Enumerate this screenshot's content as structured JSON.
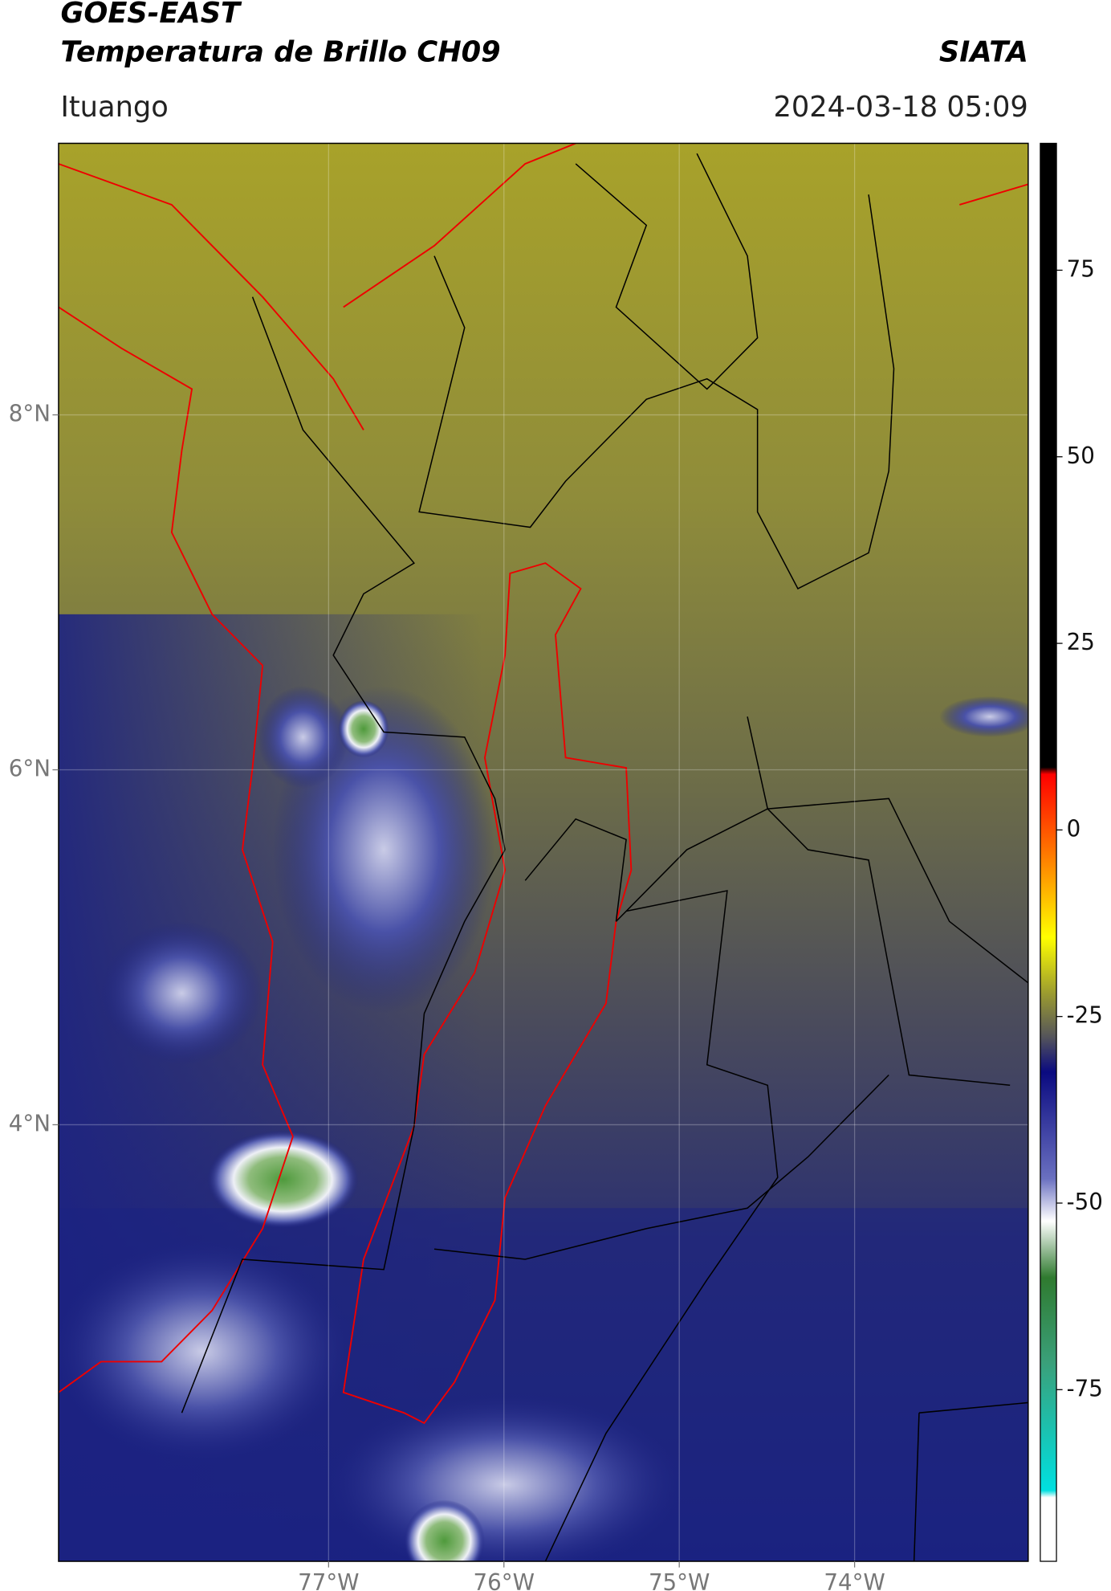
{
  "header": {
    "title_line1": "GOES-EAST",
    "title_line2": "Temperatura de Brillo CH09",
    "brand": "SIATA",
    "location": "Ituango",
    "datetime": "2024-03-18 05:09"
  },
  "map": {
    "xlim": [
      -78.54,
      -73.01
    ],
    "ylim": [
      1.54,
      9.53
    ],
    "xticks": [
      {
        "value": -77,
        "label": "77°W"
      },
      {
        "value": -76,
        "label": "76°W"
      },
      {
        "value": -75,
        "label": "75°W"
      },
      {
        "value": -74,
        "label": "74°W"
      }
    ],
    "yticks": [
      {
        "value": 8,
        "label": "8°N"
      },
      {
        "value": 6,
        "label": "6°N"
      },
      {
        "value": 4,
        "label": "4°N"
      }
    ],
    "grid": true
  },
  "colorbar": {
    "lim": [
      -98,
      92
    ],
    "ticks": [
      75,
      50,
      25,
      0,
      -25,
      -50,
      -75
    ]
  }
}
